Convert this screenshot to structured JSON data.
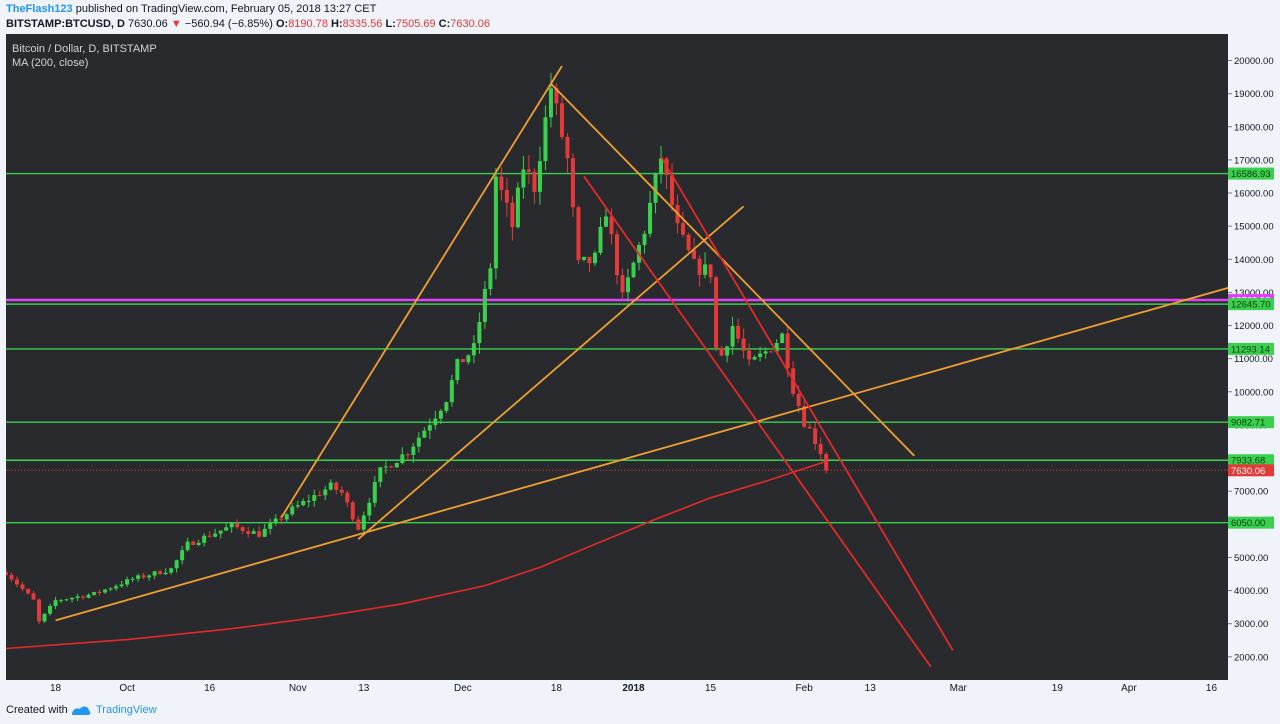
{
  "header": {
    "author": "TheFlash123",
    "published_text": "published on TradingView.com, February 05, 2018 13:27 CET",
    "symbol": "BITSTAMP:BTCUSD, D",
    "last": "7630.06",
    "change": "−560.94 (−6.85%)",
    "o_label": "O:",
    "o_value": "8190.78",
    "h_label": "H:",
    "h_value": "8335.56",
    "l_label": "L:",
    "l_value": "7505.69",
    "c_label": "C:",
    "c_value": "7630.06"
  },
  "legend": {
    "title": "Bitcoin / Dollar, D, BITSTAMP",
    "indicator": "MA (200, close)"
  },
  "footer": {
    "created_with": "Created with",
    "brand": "TradingView"
  },
  "colors": {
    "background": "#292a2d",
    "up": "#3ad04d",
    "down": "#e53a3a",
    "ma": "#e52a2a",
    "trendline": "#f0a030",
    "channel": "#e52a2a",
    "support": "#3ad04d",
    "magenta": "#e040fb"
  },
  "chart_data": {
    "type": "candlestick",
    "title": "Bitcoin / Dollar, D, BITSTAMP",
    "interval": "D",
    "ylim": [
      1300,
      20800
    ],
    "y_ticks": [
      2000,
      3000,
      4000,
      5000,
      6000,
      7000,
      8000,
      9000,
      10000,
      11000,
      12000,
      13000,
      14000,
      15000,
      16000,
      17000,
      18000,
      19000,
      20000
    ],
    "x_start": "2017-09-09",
    "x_end": "2018-04-19",
    "x_ticks": [
      {
        "date": "2017-09-18",
        "label": "18"
      },
      {
        "date": "2017-10-01",
        "label": "Oct"
      },
      {
        "date": "2017-10-16",
        "label": "16"
      },
      {
        "date": "2017-11-01",
        "label": "Nov"
      },
      {
        "date": "2017-11-13",
        "label": "13"
      },
      {
        "date": "2017-12-01",
        "label": "Dec"
      },
      {
        "date": "2017-12-18",
        "label": "18"
      },
      {
        "date": "2018-01-01",
        "label": "2018"
      },
      {
        "date": "2018-01-15",
        "label": "15"
      },
      {
        "date": "2018-02-01",
        "label": "Feb"
      },
      {
        "date": "2018-02-13",
        "label": "13"
      },
      {
        "date": "2018-03-01",
        "label": "Mar"
      },
      {
        "date": "2018-03-19",
        "label": "19"
      },
      {
        "date": "2018-04-01",
        "label": "Apr"
      },
      {
        "date": "2018-04-16",
        "label": "16"
      }
    ],
    "price_labels": [
      {
        "value": 16586.93,
        "text": "16586.93",
        "color": "#3ad04d"
      },
      {
        "value": 12769.93,
        "text": "12769.93",
        "color": "#e040fb"
      },
      {
        "value": 12645.7,
        "text": "12645.70",
        "color": "#3ad04d"
      },
      {
        "value": 11293.14,
        "text": "11293.14",
        "color": "#3ad04d"
      },
      {
        "value": 9082.71,
        "text": "9082.71",
        "color": "#3ad04d"
      },
      {
        "value": 7933.68,
        "text": "7933.68",
        "color": "#3ad04d"
      },
      {
        "value": 7630.06,
        "text": "7630.06",
        "color": "#e53a3a"
      },
      {
        "value": 6050.0,
        "text": "6050.00",
        "color": "#3ad04d"
      }
    ],
    "hlines": [
      {
        "value": 16586.93,
        "color": "#3ad04d"
      },
      {
        "value": 12769.93,
        "color": "#e040fb"
      },
      {
        "value": 12645.7,
        "color": "#3ad04d"
      },
      {
        "value": 11293.14,
        "color": "#3ad04d"
      },
      {
        "value": 9082.71,
        "color": "#3ad04d"
      },
      {
        "value": 7933.68,
        "color": "#3ad04d"
      },
      {
        "value": 6050.0,
        "color": "#3ad04d"
      }
    ],
    "last_price_line": 7630.06,
    "trendlines": [
      {
        "from": [
          "2017-09-18",
          3100
        ],
        "to": [
          "2017-11-09",
          5550
        ],
        "extend": true,
        "until": "2018-04-19",
        "color": "#f0a030"
      },
      {
        "from": [
          "2017-10-29",
          6200
        ],
        "to": [
          "2017-12-17",
          19300
        ],
        "extend": true,
        "until": "2017-12-19",
        "color": "#f0a030"
      },
      {
        "from": [
          "2017-11-12",
          5550
        ],
        "to": [
          "2018-01-21",
          15600
        ],
        "color": "#f0a030"
      },
      {
        "from": [
          "2017-12-17",
          19300
        ],
        "to": [
          "2018-02-07",
          10450
        ],
        "extend": true,
        "until": "2018-02-21",
        "color": "#f0a030"
      },
      {
        "from": [
          "2017-12-23",
          16500
        ],
        "to": [
          "2018-02-24",
          1700
        ],
        "color": "#e52a2a"
      },
      {
        "from": [
          "2018-01-06",
          17100
        ],
        "to": [
          "2018-02-28",
          2200
        ],
        "color": "#e52a2a"
      }
    ],
    "ma200": [
      [
        "2017-09-09",
        2250
      ],
      [
        "2017-10-01",
        2520
      ],
      [
        "2017-10-20",
        2850
      ],
      [
        "2017-11-05",
        3200
      ],
      [
        "2017-11-20",
        3600
      ],
      [
        "2017-12-05",
        4150
      ],
      [
        "2017-12-15",
        4700
      ],
      [
        "2017-12-25",
        5400
      ],
      [
        "2018-01-05",
        6150
      ],
      [
        "2018-01-15",
        6800
      ],
      [
        "2018-01-25",
        7300
      ],
      [
        "2018-02-05",
        7900
      ]
    ],
    "anchors": [
      [
        "2017-09-09",
        4550
      ],
      [
        "2017-09-14",
        3700
      ],
      [
        "2017-09-15",
        3050
      ],
      [
        "2017-09-18",
        3700
      ],
      [
        "2017-09-25",
        3900
      ],
      [
        "2017-10-02",
        4350
      ],
      [
        "2017-10-09",
        4650
      ],
      [
        "2017-10-12",
        5400
      ],
      [
        "2017-10-20",
        5950
      ],
      [
        "2017-10-25",
        5700
      ],
      [
        "2017-10-31",
        6450
      ],
      [
        "2017-11-07",
        7150
      ],
      [
        "2017-11-09",
        6950
      ],
      [
        "2017-11-12",
        5900
      ],
      [
        "2017-11-16",
        7600
      ],
      [
        "2017-11-21",
        8200
      ],
      [
        "2017-11-26",
        9300
      ],
      [
        "2017-11-28",
        9800
      ],
      [
        "2017-11-30",
        10800
      ],
      [
        "2017-12-03",
        11300
      ],
      [
        "2017-12-06",
        13800
      ],
      [
        "2017-12-07",
        16500
      ],
      [
        "2017-12-10",
        15000
      ],
      [
        "2017-12-12",
        16800
      ],
      [
        "2017-12-14",
        16200
      ],
      [
        "2017-12-17",
        19200
      ],
      [
        "2017-12-20",
        17000
      ],
      [
        "2017-12-22",
        13800
      ],
      [
        "2017-12-25",
        14000
      ],
      [
        "2017-12-27",
        15500
      ],
      [
        "2017-12-30",
        12800
      ],
      [
        "2018-01-03",
        14900
      ],
      [
        "2018-01-06",
        17100
      ],
      [
        "2018-01-09",
        14900
      ],
      [
        "2018-01-12",
        13800
      ],
      [
        "2018-01-15",
        13600
      ],
      [
        "2018-01-16",
        11300
      ],
      [
        "2018-01-17",
        11100
      ],
      [
        "2018-01-19",
        12000
      ],
      [
        "2018-01-22",
        10800
      ],
      [
        "2018-01-25",
        11200
      ],
      [
        "2018-01-28",
        11700
      ],
      [
        "2018-01-30",
        10100
      ],
      [
        "2018-02-01",
        9100
      ],
      [
        "2018-02-02",
        8850
      ],
      [
        "2018-02-04",
        8190
      ],
      [
        "2018-02-05",
        7630
      ]
    ]
  }
}
